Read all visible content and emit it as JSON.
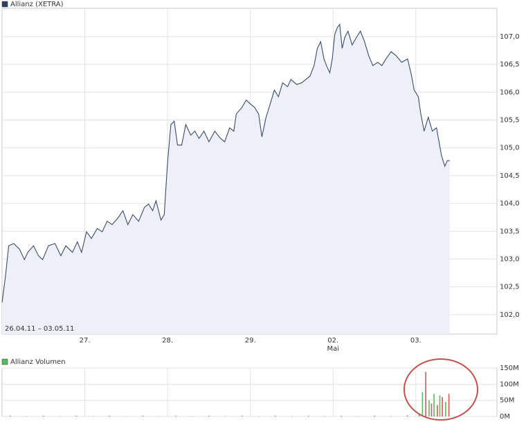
{
  "chart_data": [
    {
      "type": "area",
      "legend": "Allianz (XETRA)",
      "legend_color": "#2f3f66",
      "color": "#3a4a6b",
      "fill": "#eef0f8",
      "annotation": "26.04.11 – 03.05.11",
      "grid": true,
      "x": [
        0,
        0.04,
        0.08,
        0.14,
        0.21,
        0.27,
        0.31,
        0.38,
        0.44,
        0.49,
        0.56,
        0.64,
        0.71,
        0.77,
        0.85,
        0.91,
        0.96,
        1.02,
        1.08,
        1.15,
        1.21,
        1.27,
        1.33,
        1.4,
        1.46,
        1.52,
        1.58,
        1.65,
        1.72,
        1.77,
        1.82,
        1.86,
        1.92,
        1.96,
        2.0,
        2.04,
        2.08,
        2.12,
        2.17,
        2.22,
        2.28,
        2.33,
        2.38,
        2.44,
        2.5,
        2.57,
        2.64,
        2.69,
        2.75,
        2.8,
        2.83,
        2.9,
        2.95,
        3.0,
        3.05,
        3.1,
        3.14,
        3.19,
        3.24,
        3.29,
        3.34,
        3.39,
        3.45,
        3.49,
        3.56,
        3.62,
        3.67,
        3.72,
        3.77,
        3.81,
        3.85,
        3.89,
        3.92,
        3.96,
        3.99,
        4.02,
        4.05,
        4.08,
        4.11,
        4.14,
        4.18,
        4.23,
        4.28,
        4.33,
        4.38,
        4.43,
        4.48,
        4.54,
        4.59,
        4.64,
        4.7,
        4.76,
        4.83,
        4.9,
        4.95,
        4.98,
        5.03,
        5.06,
        5.1,
        5.15,
        5.2,
        5.25,
        5.28,
        5.31,
        5.35,
        5.38,
        5.41
      ],
      "values": [
        102.22,
        102.68,
        103.24,
        103.28,
        103.18,
        102.99,
        103.12,
        103.24,
        103.06,
        102.99,
        103.24,
        103.28,
        103.06,
        103.24,
        103.12,
        103.31,
        103.12,
        103.49,
        103.37,
        103.55,
        103.49,
        103.68,
        103.62,
        103.74,
        103.87,
        103.62,
        103.8,
        103.68,
        103.93,
        103.99,
        103.87,
        104.05,
        103.7,
        103.8,
        104.74,
        105.42,
        105.48,
        105.05,
        105.05,
        105.42,
        105.23,
        105.3,
        105.17,
        105.3,
        105.11,
        105.3,
        105.17,
        105.11,
        105.36,
        105.3,
        105.61,
        105.73,
        105.86,
        105.79,
        105.73,
        105.61,
        105.2,
        105.55,
        105.79,
        106.04,
        105.92,
        106.17,
        106.1,
        106.23,
        106.14,
        106.17,
        106.23,
        106.29,
        106.48,
        106.79,
        106.91,
        106.6,
        106.48,
        106.35,
        106.6,
        107.04,
        107.16,
        107.22,
        106.79,
        106.98,
        107.1,
        106.85,
        106.98,
        107.1,
        106.91,
        106.66,
        106.48,
        106.54,
        106.48,
        106.6,
        106.73,
        106.66,
        106.54,
        106.6,
        106.29,
        106.04,
        105.92,
        105.61,
        105.3,
        105.55,
        105.3,
        105.36,
        105.11,
        104.86,
        104.67,
        104.77,
        104.77
      ],
      "xlim": [
        0,
        5.98
      ],
      "xticks": [
        {
          "value": 1,
          "label": "27."
        },
        {
          "value": 2,
          "label": "28."
        },
        {
          "value": 3,
          "label": "29."
        },
        {
          "value": 4,
          "label": "02.",
          "sublabel": "Mai"
        },
        {
          "value": 5,
          "label": "03."
        }
      ],
      "ylim": [
        101.65,
        107.51
      ],
      "yticks": [
        {
          "value": 102,
          "label": "102,0"
        },
        {
          "value": 102.5,
          "label": "102,5"
        },
        {
          "value": 103,
          "label": "103,0"
        },
        {
          "value": 103.5,
          "label": "103,5"
        },
        {
          "value": 104,
          "label": "104,0"
        },
        {
          "value": 104.5,
          "label": "104,5"
        },
        {
          "value": 105,
          "label": "105,0"
        },
        {
          "value": 105.5,
          "label": "105,5"
        },
        {
          "value": 106,
          "label": "106,0"
        },
        {
          "value": 106.5,
          "label": "106,5"
        },
        {
          "value": 107,
          "label": "107,0"
        }
      ]
    },
    {
      "type": "bar",
      "legend": "Allianz Volumen",
      "legend_color": "#5cb85c",
      "grid": true,
      "x": [
        0.1,
        0.3,
        0.5,
        0.7,
        0.9,
        1.1,
        1.3,
        1.5,
        1.7,
        1.9,
        2.1,
        2.3,
        2.5,
        2.7,
        2.9,
        3.1,
        3.3,
        3.5,
        3.7,
        3.9,
        4.1,
        4.3,
        4.5,
        4.7,
        4.9,
        5.04,
        5.08,
        5.12,
        5.16,
        5.19,
        5.22,
        5.26,
        5.29,
        5.32,
        5.36,
        5.4
      ],
      "values": [
        2,
        1,
        2,
        1,
        2,
        1,
        2,
        1,
        2,
        1,
        2,
        1,
        2,
        1,
        2,
        1,
        2,
        1,
        2,
        1,
        2,
        1,
        2,
        1,
        3,
        8,
        75,
        138,
        50,
        40,
        70,
        35,
        65,
        60,
        45,
        70
      ],
      "colors": [
        "#d9534f",
        "#5cb85c",
        "#d9534f",
        "#5cb85c",
        "#d9534f",
        "#5cb85c",
        "#d9534f",
        "#5cb85c",
        "#d9534f",
        "#5cb85c",
        "#d9534f",
        "#5cb85c",
        "#d9534f",
        "#5cb85c",
        "#d9534f",
        "#5cb85c",
        "#d9534f",
        "#5cb85c",
        "#d9534f",
        "#5cb85c",
        "#d9534f",
        "#5cb85c",
        "#d9534f",
        "#5cb85c",
        "#d9534f",
        "#5cb85c",
        "#5cb85c",
        "#d9534f",
        "#5cb85c",
        "#d9534f",
        "#5cb85c",
        "#d9534f",
        "#5cb85c",
        "#d9534f",
        "#5cb85c",
        "#d9534f"
      ],
      "xlim": [
        0,
        5.98
      ],
      "xticks": [
        1,
        2,
        3,
        4,
        5
      ],
      "ylim": [
        0,
        150
      ],
      "yticks": [
        {
          "value": 0,
          "label": "0M"
        },
        {
          "value": 50,
          "label": "50M"
        },
        {
          "value": 100,
          "label": "100M"
        },
        {
          "value": 150,
          "label": "150M"
        }
      ]
    }
  ]
}
